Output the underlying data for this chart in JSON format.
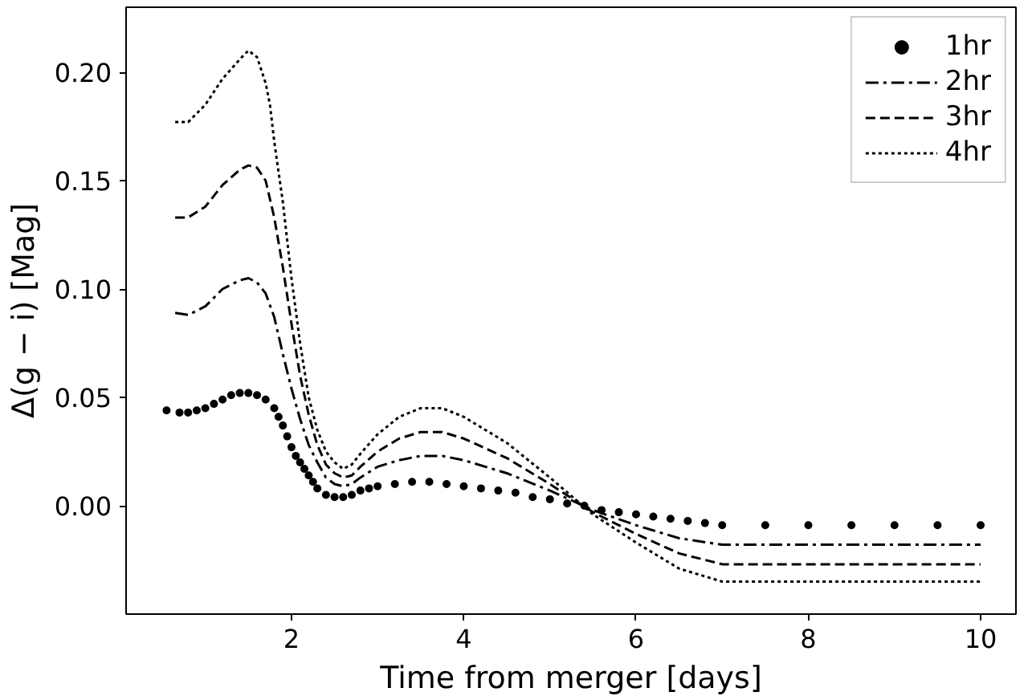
{
  "chart_data": {
    "type": "line",
    "xlabel": "Time from merger [days]",
    "ylabel": "Δ(g − i) [Mag]",
    "xlim": [
      0.08,
      10.41
    ],
    "ylim": [
      -0.05,
      0.23
    ],
    "xticks": [
      2,
      4,
      6,
      8,
      10
    ],
    "yticks": [
      {
        "value": 0,
        "label": "0.00"
      },
      {
        "value": 0.05,
        "label": "0.05"
      },
      {
        "value": 0.1,
        "label": "0.10"
      },
      {
        "value": 0.15,
        "label": "0.15"
      },
      {
        "value": 0.2,
        "label": "0.20"
      }
    ],
    "grid": false,
    "legend": "top right",
    "series": [
      {
        "name": "1hr",
        "type": "scatter",
        "marker": "circle",
        "color": "#000000",
        "x": [
          0.55,
          0.7,
          0.8,
          0.9,
          1.0,
          1.1,
          1.2,
          1.3,
          1.4,
          1.5,
          1.6,
          1.7,
          1.8,
          1.85,
          1.9,
          1.95,
          2.0,
          2.05,
          2.1,
          2.15,
          2.2,
          2.25,
          2.3,
          2.4,
          2.5,
          2.6,
          2.7,
          2.8,
          2.9,
          3.0,
          3.2,
          3.4,
          3.6,
          3.8,
          4.0,
          4.2,
          4.4,
          4.6,
          4.8,
          5.0,
          5.2,
          5.4,
          5.6,
          5.8,
          6.0,
          6.2,
          6.4,
          6.6,
          6.8,
          7.0,
          7.5,
          8.0,
          8.5,
          9.0,
          9.5,
          10.0
        ],
        "values": [
          0.044,
          0.043,
          0.043,
          0.044,
          0.045,
          0.047,
          0.049,
          0.051,
          0.052,
          0.052,
          0.051,
          0.049,
          0.045,
          0.041,
          0.037,
          0.032,
          0.027,
          0.023,
          0.02,
          0.017,
          0.014,
          0.011,
          0.008,
          0.005,
          0.004,
          0.004,
          0.005,
          0.007,
          0.008,
          0.009,
          0.01,
          0.011,
          0.011,
          0.01,
          0.009,
          0.008,
          0.007,
          0.006,
          0.004,
          0.003,
          0.001,
          0.0,
          -0.002,
          -0.003,
          -0.004,
          -0.005,
          -0.006,
          -0.007,
          -0.008,
          -0.009,
          -0.009,
          -0.009,
          -0.009,
          -0.009,
          -0.009,
          -0.009
        ]
      },
      {
        "name": "2hr",
        "line_style": "dashdot",
        "color": "#000000",
        "x": [
          0.65,
          0.8,
          1.0,
          1.2,
          1.4,
          1.5,
          1.6,
          1.7,
          1.8,
          1.9,
          2.0,
          2.1,
          2.2,
          2.3,
          2.4,
          2.5,
          2.6,
          2.7,
          2.8,
          3.0,
          3.25,
          3.5,
          3.75,
          4.0,
          4.5,
          5.0,
          5.5,
          6.0,
          6.5,
          7.0,
          8.0,
          9.0,
          10.0
        ],
        "values": [
          0.089,
          0.088,
          0.092,
          0.1,
          0.104,
          0.105,
          0.103,
          0.098,
          0.087,
          0.07,
          0.054,
          0.04,
          0.028,
          0.02,
          0.013,
          0.01,
          0.009,
          0.01,
          0.013,
          0.018,
          0.021,
          0.023,
          0.023,
          0.021,
          0.015,
          0.007,
          -0.002,
          -0.009,
          -0.015,
          -0.018,
          -0.018,
          -0.018,
          -0.018
        ]
      },
      {
        "name": "3hr",
        "line_style": "dashed",
        "color": "#000000",
        "x": [
          0.65,
          0.8,
          1.0,
          1.2,
          1.4,
          1.5,
          1.6,
          1.7,
          1.8,
          1.9,
          2.0,
          2.1,
          2.2,
          2.3,
          2.4,
          2.5,
          2.6,
          2.7,
          2.8,
          3.0,
          3.25,
          3.5,
          3.75,
          4.0,
          4.5,
          5.0,
          5.5,
          6.0,
          6.5,
          7.0,
          8.0,
          9.0,
          10.0
        ],
        "values": [
          0.133,
          0.133,
          0.138,
          0.148,
          0.155,
          0.157,
          0.156,
          0.15,
          0.133,
          0.11,
          0.084,
          0.06,
          0.042,
          0.028,
          0.019,
          0.015,
          0.013,
          0.014,
          0.018,
          0.025,
          0.031,
          0.034,
          0.034,
          0.031,
          0.022,
          0.01,
          -0.003,
          -0.013,
          -0.022,
          -0.027,
          -0.027,
          -0.027,
          -0.027
        ]
      },
      {
        "name": "4hr",
        "line_style": "dotted",
        "color": "#000000",
        "x": [
          0.65,
          0.8,
          1.0,
          1.2,
          1.4,
          1.5,
          1.6,
          1.7,
          1.75,
          1.8,
          1.9,
          2.0,
          2.1,
          2.2,
          2.3,
          2.4,
          2.5,
          2.6,
          2.7,
          2.8,
          3.0,
          3.25,
          3.5,
          3.75,
          4.0,
          4.5,
          5.0,
          5.5,
          6.0,
          6.5,
          7.0,
          8.0,
          9.0,
          10.0
        ],
        "values": [
          0.177,
          0.177,
          0.185,
          0.197,
          0.206,
          0.21,
          0.207,
          0.195,
          0.185,
          0.168,
          0.14,
          0.105,
          0.075,
          0.05,
          0.035,
          0.025,
          0.02,
          0.017,
          0.019,
          0.024,
          0.033,
          0.041,
          0.045,
          0.045,
          0.041,
          0.029,
          0.013,
          -0.004,
          -0.017,
          -0.029,
          -0.035,
          -0.035,
          -0.035,
          -0.035
        ]
      }
    ]
  }
}
